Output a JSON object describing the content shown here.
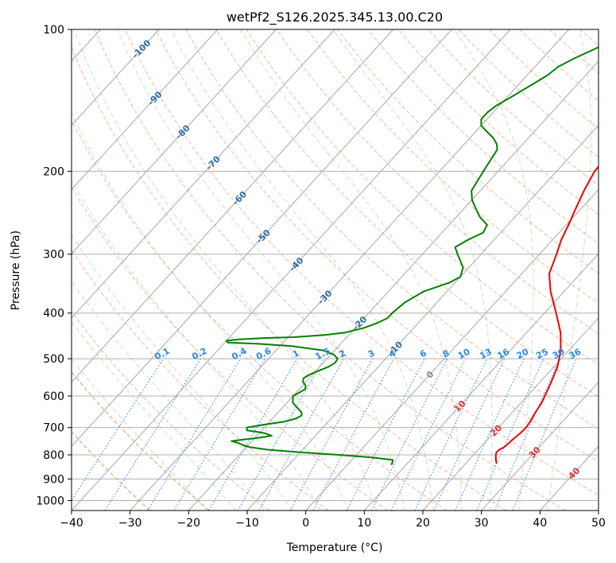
{
  "chart_data": {
    "type": "skew-t",
    "title": "wetPf2_S126.2025.345.13.00.C20",
    "xlabel": "Temperature (°C)",
    "ylabel": "Pressure (hPa)",
    "xlim": [
      -40,
      50
    ],
    "ylim": [
      1050,
      100
    ],
    "x_ticks": [
      -40,
      -30,
      -20,
      -10,
      0,
      10,
      20,
      30,
      40,
      50
    ],
    "y_ticks": [
      100,
      200,
      300,
      400,
      500,
      600,
      700,
      800,
      900,
      1000
    ],
    "x_tick_labels": [
      "−40",
      "−30",
      "−20",
      "−10",
      "0",
      "10",
      "20",
      "30",
      "40",
      "50"
    ],
    "y_tick_labels": [
      "100",
      "200",
      "300",
      "400",
      "500",
      "600",
      "700",
      "800",
      "900",
      "1000"
    ],
    "isotherm_labels": [
      {
        "text": "-100",
        "t": -100,
        "p": 110
      },
      {
        "text": "-90",
        "t": -90,
        "p": 140
      },
      {
        "text": "-80",
        "t": -80,
        "p": 165
      },
      {
        "text": "-70",
        "t": -70,
        "p": 192
      },
      {
        "text": "-60",
        "t": -60,
        "p": 228
      },
      {
        "text": "-50",
        "t": -50,
        "p": 275
      },
      {
        "text": "-40",
        "t": -40,
        "p": 315
      },
      {
        "text": "-30",
        "t": -30,
        "p": 370
      },
      {
        "text": "-20",
        "t": -20,
        "p": 420
      },
      {
        "text": "-10",
        "t": -10,
        "p": 475
      },
      {
        "text": "0",
        "t": 0,
        "p": 540
      },
      {
        "text": "10",
        "t": 10,
        "p": 630
      },
      {
        "text": "20",
        "t": 20,
        "p": 710
      },
      {
        "text": "30",
        "t": 30,
        "p": 790
      },
      {
        "text": "40",
        "t": 40,
        "p": 875
      }
    ],
    "mixing_ratio_labels": [
      "0.1",
      "0.2",
      "0.4",
      "0.6",
      "1",
      "1.5",
      "2",
      "3",
      "4",
      "6",
      "8",
      "10",
      "13",
      "16",
      "20",
      "25",
      "30",
      "36"
    ],
    "series": [
      {
        "name": "Temperature",
        "color": "#ee0000",
        "p": [
          835,
          820,
          800,
          790,
          780,
          770,
          755,
          740,
          720,
          700,
          680,
          660,
          640,
          620,
          600,
          560,
          520,
          480,
          440,
          400,
          360,
          330,
          300,
          280,
          260,
          245,
          220,
          200,
          180,
          170,
          160,
          150,
          140,
          130,
          120,
          110,
          100
        ],
        "t": [
          25.3,
          24.6,
          23.8,
          23.5,
          23.6,
          24.0,
          24.2,
          24.3,
          24.6,
          24.7,
          24.5,
          24.1,
          23.8,
          23.5,
          23.0,
          21.9,
          20.6,
          18.6,
          15.8,
          12.0,
          7.7,
          4.7,
          2.9,
          1.5,
          0.4,
          -0.6,
          -2.3,
          -3.5,
          -3.8,
          -3.3,
          -1.5,
          1.0,
          2.5,
          3.0,
          3.7,
          5.0,
          7.5
        ]
      },
      {
        "name": "Dewpoint",
        "color": "#008000",
        "p": [
          840,
          830,
          820,
          810,
          800,
          790,
          780,
          770,
          765,
          762,
          755,
          748,
          743,
          738,
          733,
          728,
          720,
          715,
          710,
          700,
          690,
          680,
          670,
          660,
          650,
          640,
          630,
          620,
          610,
          600,
          590,
          580,
          570,
          560,
          550,
          540,
          530,
          520,
          510,
          500,
          490,
          480,
          470,
          465,
          462,
          458,
          455,
          452,
          450,
          445,
          440,
          430,
          420,
          410,
          400,
          380,
          360,
          345,
          335,
          320,
          300,
          290,
          280,
          270,
          260,
          250,
          240,
          230,
          220,
          210,
          200,
          190,
          180,
          175,
          170,
          165,
          160,
          155,
          150,
          145,
          140,
          135,
          130,
          125,
          120,
          115,
          110,
          105,
          100
        ],
        "t": [
          7.5,
          7.3,
          7.0,
          3.0,
          -3.0,
          -10.0,
          -16.0,
          -19.5,
          -20.5,
          -21.0,
          -22.0,
          -23.5,
          -22.0,
          -20.0,
          -18.5,
          -17.5,
          -19.0,
          -20.5,
          -22.5,
          -23.0,
          -20.5,
          -17.5,
          -16.0,
          -15.5,
          -16.0,
          -17.0,
          -18.0,
          -19.0,
          -19.5,
          -20.0,
          -19.5,
          -19.0,
          -19.5,
          -20.5,
          -21.0,
          -20.5,
          -19.5,
          -18.5,
          -18.0,
          -18.2,
          -19.5,
          -22.0,
          -28.0,
          -34.0,
          -39.5,
          -40.0,
          -38.0,
          -34.0,
          -29.0,
          -24.0,
          -21.0,
          -18.5,
          -17.0,
          -16.0,
          -16.0,
          -15.5,
          -14.0,
          -11.0,
          -10.0,
          -11.0,
          -14.0,
          -15.5,
          -14.5,
          -13.0,
          -13.5,
          -16.0,
          -18.0,
          -20.0,
          -21.5,
          -22.0,
          -22.5,
          -23.0,
          -23.5,
          -24.5,
          -26.0,
          -28.0,
          -30.0,
          -31.0,
          -31.0,
          -30.5,
          -29.5,
          -28.5,
          -27.5,
          -26.5,
          -26.0,
          -24.5,
          -22.5,
          -21.0,
          -20.0
        ]
      }
    ]
  }
}
